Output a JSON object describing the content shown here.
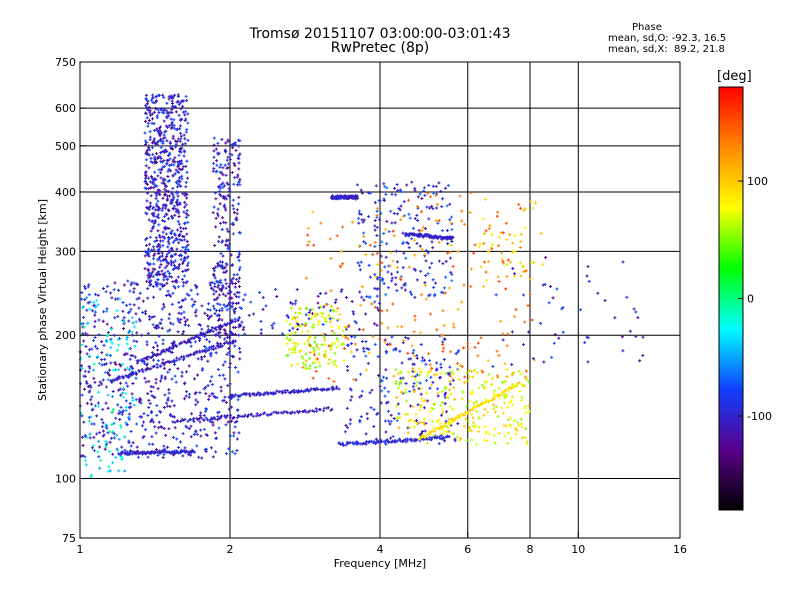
{
  "title_line1": "Tromsø 20151107 03:00:00-03:01:43",
  "title_line2": "RwPretec (8p)",
  "phase_box": {
    "header": "Phase",
    "line_o": "mean, sd,O: -92.3, 16.5",
    "line_x": "mean, sd,X:  89.2, 21.8"
  },
  "chart_data": {
    "type": "scatter",
    "title": "Tromsø 20151107 03:00:00-03:01:43",
    "subtitle": "RwPretec (8p)",
    "xlabel": "Frequency [MHz]",
    "ylabel": "Stationary phase Virtual Height [km]",
    "x_scale": "log",
    "y_scale": "log",
    "xlim": [
      1,
      16
    ],
    "ylim": [
      75,
      750
    ],
    "x_ticks": [
      1,
      2,
      4,
      6,
      8,
      10,
      16
    ],
    "x_tick_labels": [
      "1",
      "2",
      "4",
      "6",
      "8",
      "10",
      "16"
    ],
    "y_ticks": [
      75,
      100,
      200,
      300,
      400,
      500,
      600,
      750
    ],
    "y_tick_labels": [
      "75",
      "100",
      "200",
      "300",
      "400",
      "500",
      "600",
      "750"
    ],
    "grid": true,
    "colorbar": {
      "unit": "[deg]",
      "range": [
        -180,
        180
      ],
      "tick_values": [
        100,
        0,
        -100
      ],
      "tick_labels": [
        "100",
        "0",
        "-100"
      ],
      "colors": [
        "#000000",
        "#5a008c",
        "#1040ff",
        "#00ffff",
        "#00ff00",
        "#ffff00",
        "#ff8800",
        "#ff0000"
      ]
    },
    "clusters": [
      {
        "phase": -100,
        "x": [
          1.35,
          1.65
        ],
        "y": [
          250,
          640
        ],
        "n": 700
      },
      {
        "phase": -100,
        "x": [
          1.85,
          2.1
        ],
        "y": [
          200,
          520
        ],
        "n": 260
      },
      {
        "phase": -100,
        "x": [
          1.0,
          2.1
        ],
        "y": [
          110,
          260
        ],
        "n": 700
      },
      {
        "phase": -100,
        "x": [
          2.1,
          4.0
        ],
        "y": [
          200,
          250
        ],
        "n": 80
      },
      {
        "phase": -90,
        "x": [
          3.6,
          5.6
        ],
        "y": [
          240,
          420
        ],
        "n": 200
      },
      {
        "phase": -95,
        "x": [
          3.4,
          5.8
        ],
        "y": [
          118,
          200
        ],
        "n": 180
      },
      {
        "phase": -30,
        "x": [
          1.0,
          1.3
        ],
        "y": [
          100,
          240
        ],
        "n": 120
      },
      {
        "phase": 70,
        "x": [
          2.6,
          3.4
        ],
        "y": [
          170,
          230
        ],
        "n": 140
      },
      {
        "phase": 80,
        "x": [
          4.3,
          8.0
        ],
        "y": [
          118,
          170
        ],
        "n": 260
      },
      {
        "phase": 95,
        "x": [
          6.3,
          8.6
        ],
        "y": [
          260,
          390
        ],
        "n": 40
      },
      {
        "phase": 130,
        "x": [
          2.8,
          8.2
        ],
        "y": [
          160,
          400
        ],
        "n": 220
      },
      {
        "phase": -100,
        "x": [
          6.5,
          13.5
        ],
        "y": [
          170,
          300
        ],
        "n": 50
      }
    ],
    "traces": [
      {
        "phase": -105,
        "x": [
          1.15,
          2.05
        ],
        "y_start": 160,
        "y_end": 195
      },
      {
        "phase": -105,
        "x": [
          1.3,
          2.05
        ],
        "y_start": 175,
        "y_end": 215
      },
      {
        "phase": -105,
        "x": [
          1.55,
          3.2
        ],
        "y_start": 132,
        "y_end": 140
      },
      {
        "phase": -100,
        "x": [
          2.0,
          3.3
        ],
        "y_start": 149,
        "y_end": 155
      },
      {
        "phase": -100,
        "x": [
          1.2,
          1.7
        ],
        "y_start": 113,
        "y_end": 114
      },
      {
        "phase": -95,
        "x": [
          3.3,
          5.5
        ],
        "y_start": 118,
        "y_end": 122
      },
      {
        "phase": 90,
        "x": [
          4.8,
          7.6
        ],
        "y_start": 121,
        "y_end": 158
      },
      {
        "phase": -100,
        "x": [
          3.2,
          3.6
        ],
        "y_start": 390,
        "y_end": 390
      },
      {
        "phase": -100,
        "x": [
          4.5,
          5.6
        ],
        "y_start": 326,
        "y_end": 320
      }
    ]
  }
}
